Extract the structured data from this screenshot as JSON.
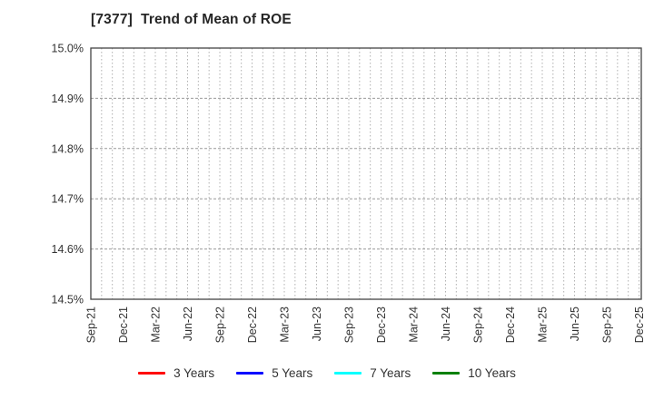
{
  "window": {
    "background": "#ffffff"
  },
  "chart_data": {
    "type": "line",
    "title": "[7377]  Trend of Mean of ROE",
    "x_tick_labels": [
      "Sep-21",
      "Dec-21",
      "Mar-22",
      "Jun-22",
      "Sep-22",
      "Dec-22",
      "Mar-23",
      "Jun-23",
      "Sep-23",
      "Dec-23",
      "Mar-24",
      "Jun-24",
      "Sep-24",
      "Dec-24",
      "Mar-25",
      "Jun-25",
      "Sep-25",
      "Dec-25"
    ],
    "y_tick_labels": [
      "14.5%",
      "14.6%",
      "14.7%",
      "14.8%",
      "14.9%",
      "15.0%"
    ],
    "ylim": [
      14.5,
      15.0
    ],
    "y_unit": "percent",
    "grid": {
      "horizontal_style": "dashed",
      "vertical_style": "dotted",
      "vertical_minor_per_quarter": 3,
      "grid_on": true
    },
    "legend_position": "bottom-center",
    "series": [
      {
        "name": "3 Years",
        "color": "#ff0000",
        "values": []
      },
      {
        "name": "5 Years",
        "color": "#0000ff",
        "values": []
      },
      {
        "name": "7 Years",
        "color": "#00ffff",
        "values": []
      },
      {
        "name": "10 Years",
        "color": "#008000",
        "values": []
      }
    ],
    "plot_area_empty": true
  },
  "colors": {
    "plot_border": "#444444",
    "grid_horizontal": "#999999",
    "grid_vertical": "#b0b0b0",
    "tick_text": "#333333",
    "title_text": "#262626",
    "legend_text": "#333333"
  }
}
